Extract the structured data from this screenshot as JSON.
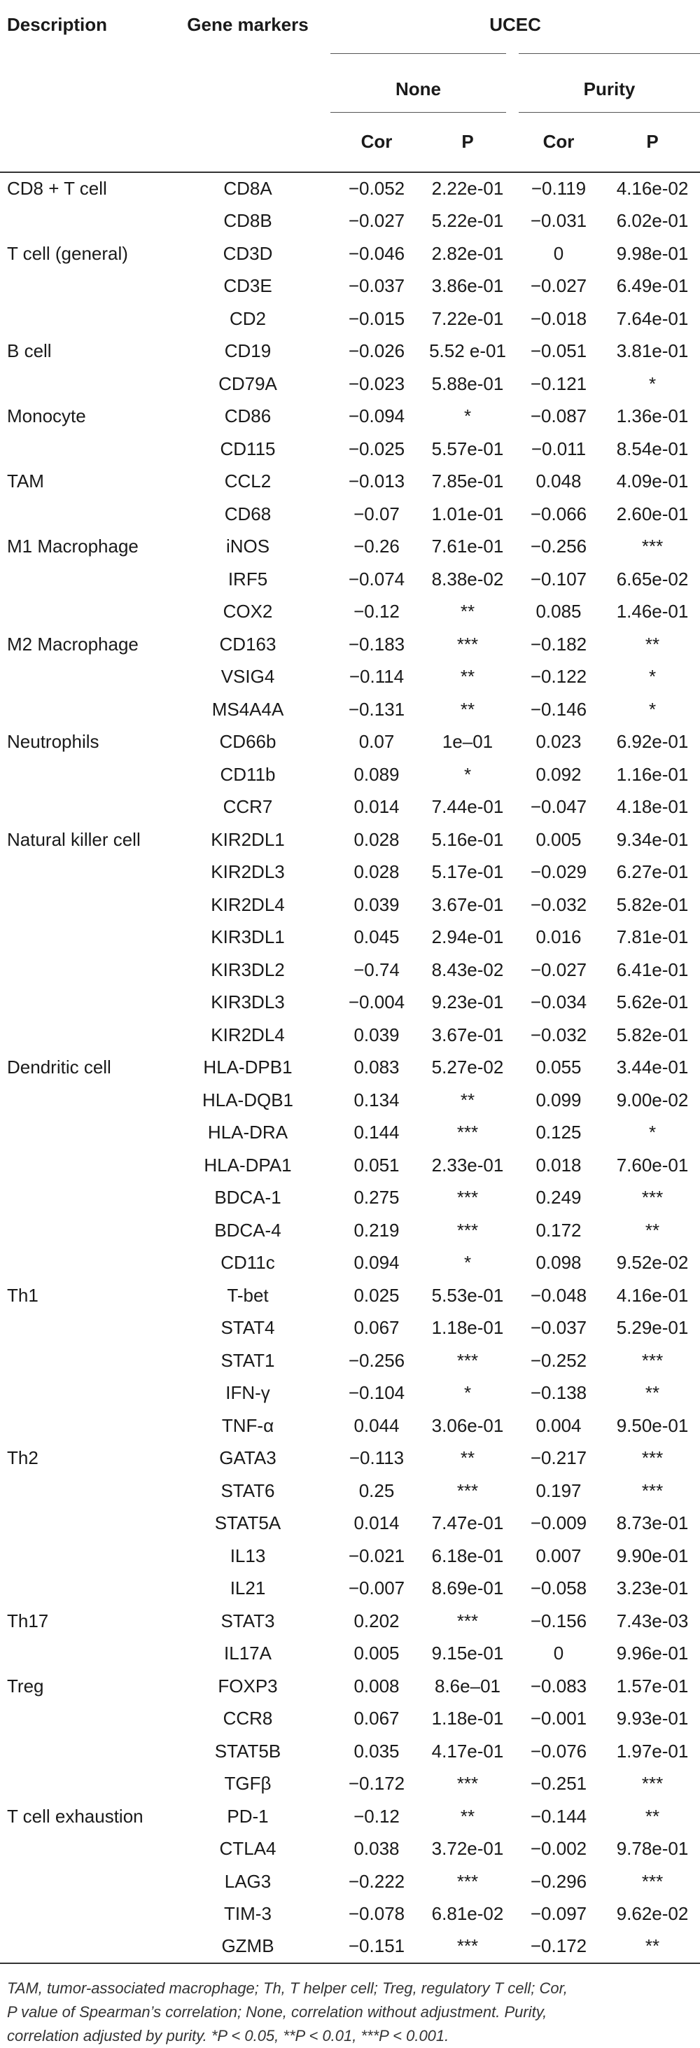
{
  "header": {
    "description": "Description",
    "gene_markers": "Gene markers",
    "dataset": "UCEC",
    "group_none": "None",
    "group_purity": "Purity",
    "cor": "Cor",
    "p": "P"
  },
  "rows": [
    [
      "CD8 + T cell",
      "CD8A",
      "−0.052",
      "2.22e-01",
      "−0.119",
      "4.16e-02"
    ],
    [
      "",
      "CD8B",
      "−0.027",
      "5.22e-01",
      "−0.031",
      "6.02e-01"
    ],
    [
      "T cell (general)",
      "CD3D",
      "−0.046",
      "2.82e-01",
      "0",
      "9.98e-01"
    ],
    [
      "",
      "CD3E",
      "−0.037",
      "3.86e-01",
      "−0.027",
      "6.49e-01"
    ],
    [
      "",
      "CD2",
      "−0.015",
      "7.22e-01",
      "−0.018",
      "7.64e-01"
    ],
    [
      "B cell",
      "CD19",
      "−0.026",
      "5.52 e-01",
      "−0.051",
      "3.81e-01"
    ],
    [
      "",
      "CD79A",
      "−0.023",
      "5.88e-01",
      "−0.121",
      "*"
    ],
    [
      "Monocyte",
      "CD86",
      "−0.094",
      "*",
      "−0.087",
      "1.36e-01"
    ],
    [
      "",
      "CD115",
      "−0.025",
      "5.57e-01",
      "−0.011",
      "8.54e-01"
    ],
    [
      "TAM",
      "CCL2",
      "−0.013",
      "7.85e-01",
      "0.048",
      "4.09e-01"
    ],
    [
      "",
      "CD68",
      "−0.07",
      "1.01e-01",
      "−0.066",
      "2.60e-01"
    ],
    [
      "M1 Macrophage",
      "iNOS",
      "−0.26",
      "7.61e-01",
      "−0.256",
      "***"
    ],
    [
      "",
      "IRF5",
      "−0.074",
      "8.38e-02",
      "−0.107",
      "6.65e-02"
    ],
    [
      "",
      "COX2",
      "−0.12",
      "**",
      "0.085",
      "1.46e-01"
    ],
    [
      "M2 Macrophage",
      "CD163",
      "−0.183",
      "***",
      "−0.182",
      "**"
    ],
    [
      "",
      "VSIG4",
      "−0.114",
      "**",
      "−0.122",
      "*"
    ],
    [
      "",
      "MS4A4A",
      "−0.131",
      "**",
      "−0.146",
      "*"
    ],
    [
      "Neutrophils",
      "CD66b",
      "0.07",
      "1e–01",
      "0.023",
      "6.92e-01"
    ],
    [
      "",
      "CD11b",
      "0.089",
      "*",
      "0.092",
      "1.16e-01"
    ],
    [
      "",
      "CCR7",
      "0.014",
      "7.44e-01",
      "−0.047",
      "4.18e-01"
    ],
    [
      "Natural killer cell",
      "KIR2DL1",
      "0.028",
      "5.16e-01",
      "0.005",
      "9.34e-01"
    ],
    [
      "",
      "KIR2DL3",
      "0.028",
      "5.17e-01",
      "−0.029",
      "6.27e-01"
    ],
    [
      "",
      "KIR2DL4",
      "0.039",
      "3.67e-01",
      "−0.032",
      "5.82e-01"
    ],
    [
      "",
      "KIR3DL1",
      "0.045",
      "2.94e-01",
      "0.016",
      "7.81e-01"
    ],
    [
      "",
      "KIR3DL2",
      "−0.74",
      "8.43e-02",
      "−0.027",
      "6.41e-01"
    ],
    [
      "",
      "KIR3DL3",
      "−0.004",
      "9.23e-01",
      "−0.034",
      "5.62e-01"
    ],
    [
      "",
      "KIR2DL4",
      "0.039",
      "3.67e-01",
      "−0.032",
      "5.82e-01"
    ],
    [
      "Dendritic cell",
      "HLA-DPB1",
      "0.083",
      "5.27e-02",
      "0.055",
      "3.44e-01"
    ],
    [
      "",
      "HLA-DQB1",
      "0.134",
      "**",
      "0.099",
      "9.00e-02"
    ],
    [
      "",
      "HLA-DRA",
      "0.144",
      "***",
      "0.125",
      "*"
    ],
    [
      "",
      "HLA-DPA1",
      "0.051",
      "2.33e-01",
      "0.018",
      "7.60e-01"
    ],
    [
      "",
      "BDCA-1",
      "0.275",
      "***",
      "0.249",
      "***"
    ],
    [
      "",
      "BDCA-4",
      "0.219",
      "***",
      "0.172",
      "**"
    ],
    [
      "",
      "CD11c",
      "0.094",
      "*",
      "0.098",
      "9.52e-02"
    ],
    [
      "Th1",
      "T-bet",
      "0.025",
      "5.53e-01",
      "−0.048",
      "4.16e-01"
    ],
    [
      "",
      "STAT4",
      "0.067",
      "1.18e-01",
      "−0.037",
      "5.29e-01"
    ],
    [
      "",
      "STAT1",
      "−0.256",
      "***",
      "−0.252",
      "***"
    ],
    [
      "",
      "IFN-γ",
      "−0.104",
      "*",
      "−0.138",
      "**"
    ],
    [
      "",
      "TNF-α",
      "0.044",
      "3.06e-01",
      "0.004",
      "9.50e-01"
    ],
    [
      "Th2",
      "GATA3",
      "−0.113",
      "**",
      "−0.217",
      "***"
    ],
    [
      "",
      "STAT6",
      "0.25",
      "***",
      "0.197",
      "***"
    ],
    [
      "",
      "STAT5A",
      "0.014",
      "7.47e-01",
      "−0.009",
      "8.73e-01"
    ],
    [
      "",
      "IL13",
      "−0.021",
      "6.18e-01",
      "0.007",
      "9.90e-01"
    ],
    [
      "",
      "IL21",
      "−0.007",
      "8.69e-01",
      "−0.058",
      "3.23e-01"
    ],
    [
      "Th17",
      "STAT3",
      "0.202",
      "***",
      "−0.156",
      "7.43e-03"
    ],
    [
      "",
      "IL17A",
      "0.005",
      "9.15e-01",
      "0",
      "9.96e-01"
    ],
    [
      "Treg",
      "FOXP3",
      "0.008",
      "8.6e–01",
      "−0.083",
      "1.57e-01"
    ],
    [
      "",
      "CCR8",
      "0.067",
      "1.18e-01",
      "−0.001",
      "9.93e-01"
    ],
    [
      "",
      "STAT5B",
      "0.035",
      "4.17e-01",
      "−0.076",
      "1.97e-01"
    ],
    [
      "",
      "TGFβ",
      "−0.172",
      "***",
      "−0.251",
      "***"
    ],
    [
      "T cell exhaustion",
      "PD-1",
      "−0.12",
      "**",
      "−0.144",
      "**"
    ],
    [
      "",
      "CTLA4",
      "0.038",
      "3.72e-01",
      "−0.002",
      "9.78e-01"
    ],
    [
      "",
      "LAG3",
      "−0.222",
      "***",
      "−0.296",
      "***"
    ],
    [
      "",
      "TIM-3",
      "−0.078",
      "6.81e-02",
      "−0.097",
      "9.62e-02"
    ],
    [
      "",
      "GZMB",
      "−0.151",
      "***",
      "−0.172",
      "**"
    ]
  ],
  "footnote": {
    "line1": "TAM, tumor-associated macrophage; Th, T helper cell; Treg, regulatory T cell; Cor,",
    "line2": "P value of Spearman’s correlation; None, correlation without adjustment. Purity,",
    "line3": "correlation adjusted by purity. *P < 0.05, **P < 0.01, ***P < 0.001."
  }
}
